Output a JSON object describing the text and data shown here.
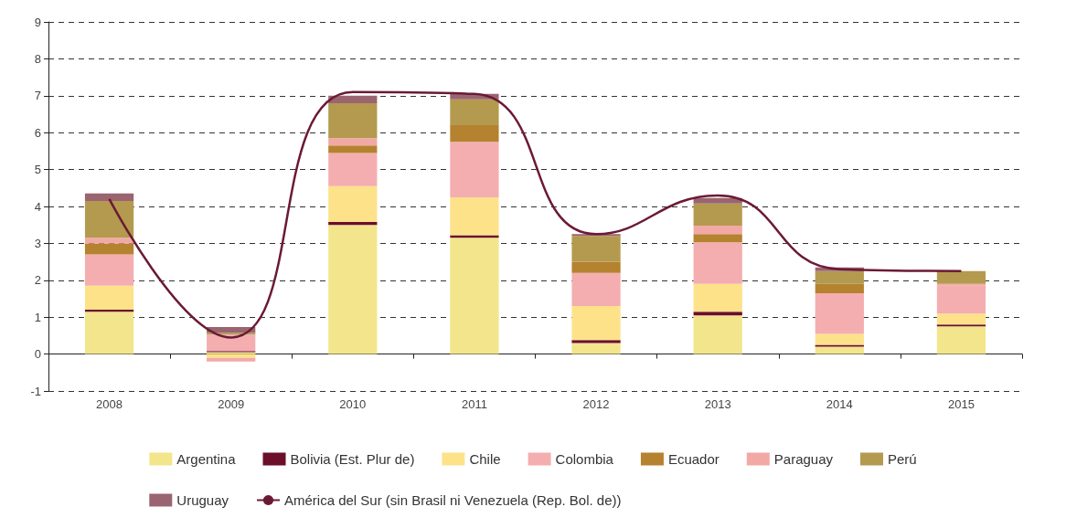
{
  "chart_data": {
    "type": "bar",
    "stacked": true,
    "categories": [
      "2008",
      "2009",
      "2010",
      "2011",
      "2012",
      "2013",
      "2014",
      "2015"
    ],
    "ylim": [
      -1,
      9
    ],
    "yticks": [
      -1,
      0,
      1,
      2,
      3,
      4,
      5,
      6,
      7,
      8,
      9
    ],
    "grid": "y",
    "legend": "bottom",
    "series": [
      {
        "name": "Argentina",
        "color": "#f3e58c",
        "values": [
          1.15,
          0.05,
          3.5,
          3.15,
          0.3,
          1.05,
          0.2,
          0.75
        ]
      },
      {
        "name": "Bolivia (Est. Plur de)",
        "color": "#6b0f2a",
        "values": [
          0.05,
          0.03,
          0.08,
          0.07,
          0.08,
          0.1,
          0.05,
          0.05
        ]
      },
      {
        "name": "Chile",
        "color": "#fde28a",
        "values": [
          0.65,
          -0.1,
          0.97,
          1.03,
          0.92,
          0.75,
          0.3,
          0.3
        ]
      },
      {
        "name": "Colombia",
        "color": "#f4aeb0",
        "values": [
          0.85,
          0.45,
          0.9,
          1.5,
          0.9,
          1.13,
          1.1,
          0.75
        ]
      },
      {
        "name": "Ecuador",
        "color": "#b5822f",
        "values": [
          0.3,
          0,
          0.2,
          0.45,
          0.3,
          0.22,
          0.25,
          0
        ]
      },
      {
        "name": "Paraguay",
        "color": "#f2a9a5",
        "values": [
          0.15,
          -0.1,
          0.2,
          0,
          0,
          0.23,
          0,
          0.05
        ]
      },
      {
        "name": "Perú",
        "color": "#b39a4e",
        "values": [
          1.0,
          0.05,
          0.95,
          0.7,
          0.7,
          0.6,
          0.35,
          0.35
        ]
      },
      {
        "name": "Uruguay",
        "color": "#9a6470",
        "values": [
          0.2,
          0.15,
          0.2,
          0.15,
          0.05,
          0.15,
          0.1,
          0
        ]
      },
      {
        "name": "América del Sur (sin Brasil ni Venezuela (Rep. Bol. de))",
        "type": "line",
        "color": "#6b1a35",
        "values": [
          4.2,
          0.45,
          7.1,
          7.05,
          3.25,
          4.3,
          2.3,
          2.25
        ]
      }
    ]
  }
}
